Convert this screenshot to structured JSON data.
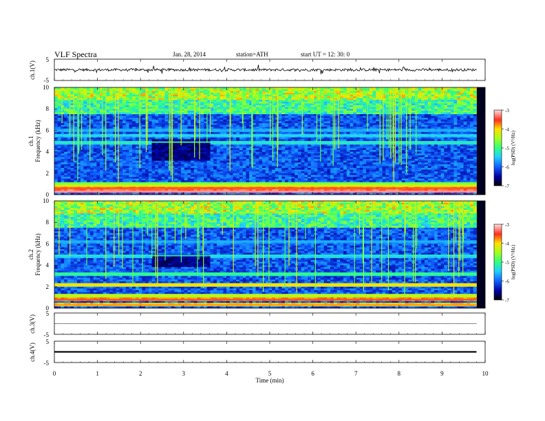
{
  "header": {
    "title": "VLF  Spectra",
    "date": "Jan. 28, 2014",
    "station": "station=ATH",
    "start": "start  UT  =   12: 30: 0"
  },
  "chart_data": [
    {
      "type": "line",
      "name": "ch1-waveform",
      "ylabel": "ch.1(V)",
      "ylim": [
        -5,
        5
      ],
      "yticks": [
        "5",
        "-5"
      ],
      "x_range_min": [
        0,
        9.8
      ],
      "baseline": 0,
      "description_level": "noise around 0 V with spikes up to about ±2 V"
    },
    {
      "type": "heatmap",
      "name": "ch1-spectrogram",
      "ylabel_channel": "ch.1",
      "ylabel": "Frequency  (kHz)",
      "ylim": [
        0,
        10
      ],
      "yticks": [
        "0",
        "2",
        "4",
        "6",
        "8",
        "10"
      ],
      "x_range_min": [
        0,
        9.8
      ],
      "colorbar": {
        "label": "log(PSD) (V²/Hz)",
        "range": [
          -7,
          -3
        ],
        "ticks": [
          "-3",
          "-4",
          "-5",
          "-6",
          "-7"
        ]
      },
      "bands": [
        {
          "f": 0.3,
          "level": -3.2
        },
        {
          "f": 0.6,
          "level": -3.6
        },
        {
          "f": 0.8,
          "level": -4.2
        },
        {
          "f": 1.0,
          "level": -4.6
        },
        {
          "f": 4.9,
          "level": -5.2
        },
        {
          "f": 5.5,
          "level": -5.4
        },
        {
          "f": 6.0,
          "level": -5.6
        }
      ],
      "quiet_region": {
        "x": [
          2.25,
          3.55
        ],
        "f": [
          3.2,
          5.1
        ]
      }
    },
    {
      "type": "heatmap",
      "name": "ch2-spectrogram",
      "ylabel_channel": "ch.2",
      "ylabel": "Frequency  (kHz)",
      "ylim": [
        0,
        10
      ],
      "yticks": [
        "0",
        "2",
        "4",
        "6",
        "8",
        "10"
      ],
      "x_range_min": [
        0,
        9.8
      ],
      "colorbar": {
        "label": "log(PSD) (V²/Hz)",
        "range": [
          -7,
          -3
        ],
        "ticks": [
          "-3",
          "-4",
          "-5",
          "-6",
          "-7"
        ]
      },
      "bands": [
        {
          "f": 0.3,
          "level": -3.8
        },
        {
          "f": 0.8,
          "level": -3.6
        },
        {
          "f": 1.2,
          "level": -4.3
        },
        {
          "f": 2.2,
          "level": -4.0
        },
        {
          "f": 3.2,
          "level": -5.0
        },
        {
          "f": 4.9,
          "level": -5.3
        },
        {
          "f": 6.2,
          "level": -5.6
        }
      ],
      "quiet_region": {
        "x": [
          2.25,
          3.55
        ],
        "f": [
          3.8,
          5.0
        ]
      }
    },
    {
      "type": "line",
      "name": "ch3-waveform",
      "ylabel": "ch.3(V)",
      "ylim": [
        -5,
        5
      ],
      "yticks": [
        "5",
        "-5"
      ],
      "x_range_min": [
        0,
        9.8
      ],
      "baseline": 0
    },
    {
      "type": "line",
      "name": "ch4-waveform",
      "ylabel": "ch.4(V)",
      "ylim": [
        -5,
        5
      ],
      "yticks": [
        "5",
        "-5"
      ],
      "x_range_min": [
        0,
        9.8
      ],
      "baseline": 0
    }
  ],
  "xaxis": {
    "label": "Time  (min)",
    "ticks": [
      "0",
      "1",
      "2",
      "3",
      "4",
      "5",
      "6",
      "7",
      "8",
      "9",
      "10"
    ],
    "xlim": [
      0,
      10
    ]
  }
}
